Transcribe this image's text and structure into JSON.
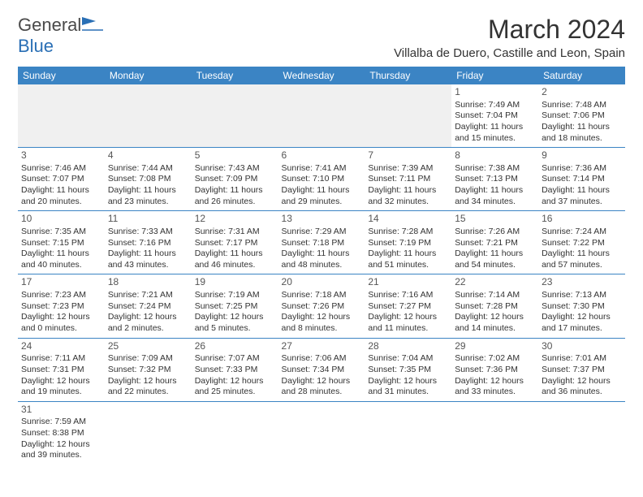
{
  "logo": {
    "text1": "General",
    "text2": "Blue"
  },
  "title": "March 2024",
  "location": "Villalba de Duero, Castille and Leon, Spain",
  "colors": {
    "header_bg": "#3b84c4",
    "header_fg": "#ffffff",
    "border": "#3b84c4",
    "empty_bg": "#f0f0f0",
    "logo_gray": "#4a4a4a",
    "logo_blue": "#2a6fb5"
  },
  "day_headers": [
    "Sunday",
    "Monday",
    "Tuesday",
    "Wednesday",
    "Thursday",
    "Friday",
    "Saturday"
  ],
  "weeks": [
    [
      null,
      null,
      null,
      null,
      null,
      {
        "n": "1",
        "sr": "7:49 AM",
        "ss": "7:04 PM",
        "dl": "11 hours and 15 minutes."
      },
      {
        "n": "2",
        "sr": "7:48 AM",
        "ss": "7:06 PM",
        "dl": "11 hours and 18 minutes."
      }
    ],
    [
      {
        "n": "3",
        "sr": "7:46 AM",
        "ss": "7:07 PM",
        "dl": "11 hours and 20 minutes."
      },
      {
        "n": "4",
        "sr": "7:44 AM",
        "ss": "7:08 PM",
        "dl": "11 hours and 23 minutes."
      },
      {
        "n": "5",
        "sr": "7:43 AM",
        "ss": "7:09 PM",
        "dl": "11 hours and 26 minutes."
      },
      {
        "n": "6",
        "sr": "7:41 AM",
        "ss": "7:10 PM",
        "dl": "11 hours and 29 minutes."
      },
      {
        "n": "7",
        "sr": "7:39 AM",
        "ss": "7:11 PM",
        "dl": "11 hours and 32 minutes."
      },
      {
        "n": "8",
        "sr": "7:38 AM",
        "ss": "7:13 PM",
        "dl": "11 hours and 34 minutes."
      },
      {
        "n": "9",
        "sr": "7:36 AM",
        "ss": "7:14 PM",
        "dl": "11 hours and 37 minutes."
      }
    ],
    [
      {
        "n": "10",
        "sr": "7:35 AM",
        "ss": "7:15 PM",
        "dl": "11 hours and 40 minutes."
      },
      {
        "n": "11",
        "sr": "7:33 AM",
        "ss": "7:16 PM",
        "dl": "11 hours and 43 minutes."
      },
      {
        "n": "12",
        "sr": "7:31 AM",
        "ss": "7:17 PM",
        "dl": "11 hours and 46 minutes."
      },
      {
        "n": "13",
        "sr": "7:29 AM",
        "ss": "7:18 PM",
        "dl": "11 hours and 48 minutes."
      },
      {
        "n": "14",
        "sr": "7:28 AM",
        "ss": "7:19 PM",
        "dl": "11 hours and 51 minutes."
      },
      {
        "n": "15",
        "sr": "7:26 AM",
        "ss": "7:21 PM",
        "dl": "11 hours and 54 minutes."
      },
      {
        "n": "16",
        "sr": "7:24 AM",
        "ss": "7:22 PM",
        "dl": "11 hours and 57 minutes."
      }
    ],
    [
      {
        "n": "17",
        "sr": "7:23 AM",
        "ss": "7:23 PM",
        "dl": "12 hours and 0 minutes."
      },
      {
        "n": "18",
        "sr": "7:21 AM",
        "ss": "7:24 PM",
        "dl": "12 hours and 2 minutes."
      },
      {
        "n": "19",
        "sr": "7:19 AM",
        "ss": "7:25 PM",
        "dl": "12 hours and 5 minutes."
      },
      {
        "n": "20",
        "sr": "7:18 AM",
        "ss": "7:26 PM",
        "dl": "12 hours and 8 minutes."
      },
      {
        "n": "21",
        "sr": "7:16 AM",
        "ss": "7:27 PM",
        "dl": "12 hours and 11 minutes."
      },
      {
        "n": "22",
        "sr": "7:14 AM",
        "ss": "7:28 PM",
        "dl": "12 hours and 14 minutes."
      },
      {
        "n": "23",
        "sr": "7:13 AM",
        "ss": "7:30 PM",
        "dl": "12 hours and 17 minutes."
      }
    ],
    [
      {
        "n": "24",
        "sr": "7:11 AM",
        "ss": "7:31 PM",
        "dl": "12 hours and 19 minutes."
      },
      {
        "n": "25",
        "sr": "7:09 AM",
        "ss": "7:32 PM",
        "dl": "12 hours and 22 minutes."
      },
      {
        "n": "26",
        "sr": "7:07 AM",
        "ss": "7:33 PM",
        "dl": "12 hours and 25 minutes."
      },
      {
        "n": "27",
        "sr": "7:06 AM",
        "ss": "7:34 PM",
        "dl": "12 hours and 28 minutes."
      },
      {
        "n": "28",
        "sr": "7:04 AM",
        "ss": "7:35 PM",
        "dl": "12 hours and 31 minutes."
      },
      {
        "n": "29",
        "sr": "7:02 AM",
        "ss": "7:36 PM",
        "dl": "12 hours and 33 minutes."
      },
      {
        "n": "30",
        "sr": "7:01 AM",
        "ss": "7:37 PM",
        "dl": "12 hours and 36 minutes."
      }
    ],
    [
      {
        "n": "31",
        "sr": "7:59 AM",
        "ss": "8:38 PM",
        "dl": "12 hours and 39 minutes."
      },
      null,
      null,
      null,
      null,
      null,
      null
    ]
  ],
  "labels": {
    "sunrise": "Sunrise:",
    "sunset": "Sunset:",
    "daylight": "Daylight:"
  }
}
